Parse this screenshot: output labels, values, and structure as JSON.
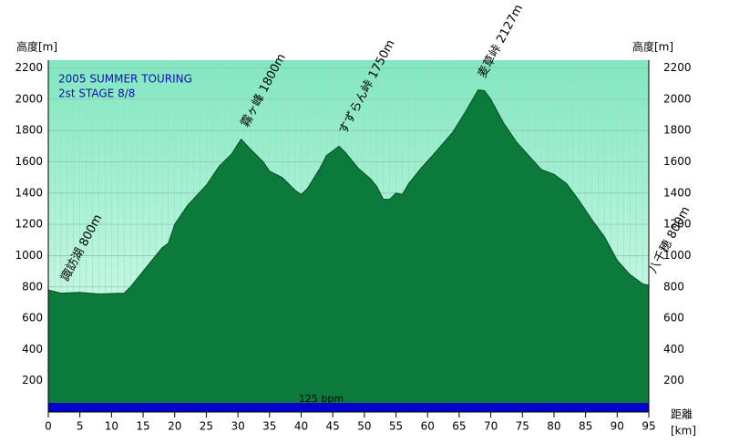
{
  "chart_data": {
    "type": "area",
    "title": "2005 SUMMER TOURING",
    "subtitle": "2st STAGE  8/8",
    "y_label": "高度[m]",
    "y2_label": "高度[m]",
    "x_label": "距離",
    "x_unit": "[km]",
    "x": [
      0,
      2,
      5,
      8,
      12,
      13,
      15,
      18,
      19,
      20,
      22,
      25,
      27,
      29,
      30.5,
      32,
      34,
      35,
      37,
      39,
      40,
      41,
      43,
      44,
      46,
      47,
      49,
      51,
      52,
      53,
      54,
      55,
      56,
      57,
      59,
      61,
      64,
      66,
      68,
      69,
      70,
      72,
      74,
      76,
      78,
      80,
      82,
      84,
      86,
      88,
      90,
      92,
      94,
      95
    ],
    "series": [
      {
        "name": "高度",
        "color": "#0b7a3b",
        "values": [
          780,
          760,
          765,
          755,
          760,
          800,
          900,
          1050,
          1080,
          1200,
          1320,
          1450,
          1570,
          1650,
          1745,
          1680,
          1600,
          1540,
          1500,
          1420,
          1390,
          1430,
          1560,
          1640,
          1700,
          1660,
          1560,
          1490,
          1440,
          1360,
          1360,
          1400,
          1390,
          1460,
          1560,
          1650,
          1790,
          1920,
          2060,
          2055,
          2000,
          1850,
          1730,
          1640,
          1550,
          1520,
          1460,
          1350,
          1230,
          1120,
          970,
          880,
          820,
          810
        ]
      }
    ],
    "annotations": [
      {
        "text": "諏訪湖 800m",
        "x": 2
      },
      {
        "text": "霧ヶ峰 1800m",
        "x": 30.5
      },
      {
        "text": "すずらん峠 1750m",
        "x": 46
      },
      {
        "text": "麦草峠 2127m",
        "x": 68
      },
      {
        "text": "八千穂 800m",
        "x": 95
      }
    ],
    "band": {
      "label": "125 bpm",
      "color": "#0000cc"
    },
    "xlim": [
      0,
      95
    ],
    "xticks": [
      0,
      5,
      10,
      15,
      20,
      25,
      30,
      35,
      40,
      45,
      50,
      55,
      60,
      65,
      70,
      75,
      80,
      85,
      90,
      95
    ],
    "ylim": [
      0,
      2250
    ],
    "yticks": [
      200,
      400,
      600,
      800,
      1000,
      1200,
      1400,
      1600,
      1800,
      2000,
      2200
    ],
    "grid": true
  }
}
